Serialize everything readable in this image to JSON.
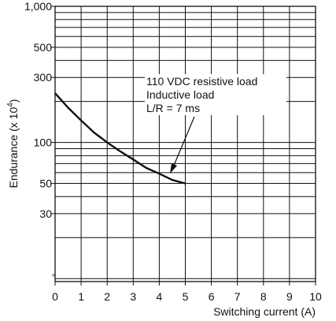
{
  "chart_data": {
    "type": "line",
    "xlabel": "Switching current (A)",
    "ylabel": "Endurance (x 10",
    "ylabel_sup": "4",
    "ylabel_end": ")",
    "x_ticks": [
      0,
      1,
      2,
      3,
      4,
      5,
      6,
      7,
      8,
      9,
      10
    ],
    "y_scale": "log",
    "y_tick_labels": [
      {
        "value": 1000,
        "label": "1,000"
      },
      {
        "value": 500,
        "label": "500"
      },
      {
        "value": 300,
        "label": "300"
      },
      {
        "value": 100,
        "label": "100"
      },
      {
        "value": 50,
        "label": "50"
      },
      {
        "value": 30,
        "label": "30"
      }
    ],
    "grid": true,
    "xlim": [
      0,
      10
    ],
    "ylim": [
      10,
      1000
    ],
    "series": [
      {
        "x": [
          0,
          0.5,
          1,
          1.5,
          2,
          2.5,
          3,
          3.5,
          4,
          4.5,
          5
        ],
        "y": [
          230,
          180,
          145,
          118,
          100,
          86,
          75,
          65,
          59,
          53,
          50
        ]
      }
    ],
    "annotation": {
      "lines": [
        "110 VDC resistive load",
        "Inductive load",
        "L/R = 7 ms"
      ],
      "points_to": {
        "x": 4,
        "y": 60
      }
    }
  }
}
